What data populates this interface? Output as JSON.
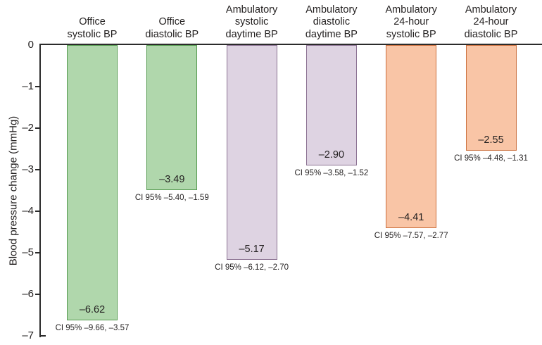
{
  "colors": {
    "axis": "#2b2b2b",
    "text": "#221f1f",
    "office_fill": "#b0d7ac",
    "office_stroke": "#569b51",
    "ambulatory_daytime_fill": "#ded3e2",
    "ambulatory_daytime_stroke": "#8b7292",
    "ambulatory_24h_fill": "#f9c5a6",
    "ambulatory_24h_stroke": "#cb6f3d"
  },
  "chart_data": {
    "type": "bar",
    "title": "",
    "xlabel": "",
    "ylabel": "Blood pressure change (mmHg)",
    "ylim": [
      -7,
      0
    ],
    "grid": false,
    "legend_position": "none",
    "yticks": [
      0,
      -1,
      -2,
      -3,
      -4,
      -5,
      -6,
      -7
    ],
    "ytick_labels": [
      "0",
      "–1",
      "–2",
      "–3",
      "–4",
      "–5",
      "–6",
      "–7"
    ],
    "categories": [
      "Office\nsystolic BP",
      "Office\ndiastolic BP",
      "Ambulatory\nsystolic\ndaytime BP",
      "Ambulatory\ndiastolic\ndaytime BP",
      "Ambulatory\n24-hour\nsystolic BP",
      "Ambulatory\n24-hour\ndiastolic BP"
    ],
    "values": [
      -6.62,
      -3.49,
      -5.17,
      -2.9,
      -4.41,
      -2.55
    ],
    "bars": [
      {
        "label": "Office\nsystolic BP",
        "value": -6.62,
        "value_label": "–6.62",
        "ci_label": "CI 95% –9.66, –3.57",
        "fill": "#b0d7ac",
        "stroke": "#569b51"
      },
      {
        "label": "Office\ndiastolic BP",
        "value": -3.49,
        "value_label": "–3.49",
        "ci_label": "CI 95% –5.40, –1.59",
        "fill": "#b0d7ac",
        "stroke": "#569b51"
      },
      {
        "label": "Ambulatory\nsystolic\ndaytime BP",
        "value": -5.17,
        "value_label": "–5.17",
        "ci_label": "CI 95% –6.12, –2.70",
        "fill": "#ded3e2",
        "stroke": "#8b7292"
      },
      {
        "label": "Ambulatory\ndiastolic\ndaytime BP",
        "value": -2.9,
        "value_label": "–2.90",
        "ci_label": "CI 95% –3.58, –1.52",
        "fill": "#ded3e2",
        "stroke": "#8b7292"
      },
      {
        "label": "Ambulatory\n24-hour\nsystolic BP",
        "value": -4.41,
        "value_label": "–4.41",
        "ci_label": "CI 95% –7.57, –2.77",
        "fill": "#f9c5a6",
        "stroke": "#cb6f3d"
      },
      {
        "label": "Ambulatory\n24-hour\ndiastolic BP",
        "value": -2.55,
        "value_label": "–2.55",
        "ci_label": "CI 95% –4.48, –1.31",
        "fill": "#f9c5a6",
        "stroke": "#cb6f3d"
      }
    ]
  }
}
